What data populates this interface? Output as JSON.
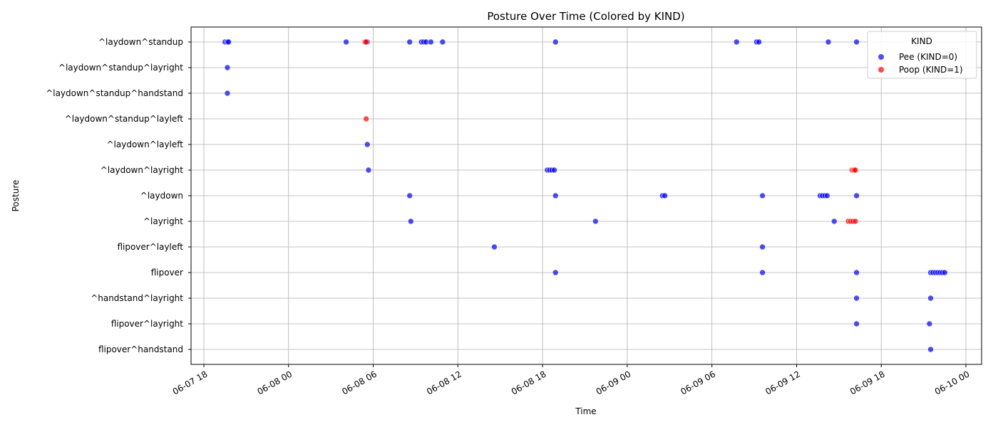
{
  "chart_data": {
    "type": "scatter",
    "title": "Posture Over Time (Colored by KIND)",
    "xlabel": "Time",
    "ylabel": "Posture",
    "grid": true,
    "x_tick_labels": [
      "06-07 18",
      "06-08 00",
      "06-08 06",
      "06-08 12",
      "06-08 18",
      "06-09 00",
      "06-09 06",
      "06-09 12",
      "06-09 18",
      "06-10 00"
    ],
    "xlim": [
      "2024-06-07 18:00",
      "2024-06-10 00:00"
    ],
    "categories": [
      "^laydown^standup",
      "^laydown^standup^layright",
      "^laydown^standup^handstand",
      "^laydown^standup^layleft",
      "^laydown^layleft",
      "^laydown^layright",
      "^laydown",
      "^layright",
      "flipover^layleft",
      "flipover",
      "^handstand^layright",
      "flipover^layright",
      "flipover^handstand"
    ],
    "legend": {
      "title": "KIND",
      "placement": "top-right",
      "entries": [
        {
          "label": "Pee (KIND=0)",
          "color": "#4c4cff"
        },
        {
          "label": "Poop (KIND=1)",
          "color": "#ff4c4c"
        }
      ]
    },
    "series": [
      {
        "name": "Pee (KIND=0)",
        "color": "#0000ff",
        "points": [
          {
            "x": "2024-06-07 19:30",
            "y": "^laydown^standup"
          },
          {
            "x": "2024-06-07 19:40",
            "y": "^laydown^standup"
          },
          {
            "x": "2024-06-07 19:45",
            "y": "^laydown^standup"
          },
          {
            "x": "2024-06-08 04:05",
            "y": "^laydown^standup"
          },
          {
            "x": "2024-06-08 05:35",
            "y": "^laydown^standup"
          },
          {
            "x": "2024-06-08 08:35",
            "y": "^laydown^standup"
          },
          {
            "x": "2024-06-08 09:25",
            "y": "^laydown^standup"
          },
          {
            "x": "2024-06-08 09:35",
            "y": "^laydown^standup"
          },
          {
            "x": "2024-06-08 09:45",
            "y": "^laydown^standup"
          },
          {
            "x": "2024-06-08 10:05",
            "y": "^laydown^standup"
          },
          {
            "x": "2024-06-08 10:55",
            "y": "^laydown^standup"
          },
          {
            "x": "2024-06-08 18:55",
            "y": "^laydown^standup"
          },
          {
            "x": "2024-06-09 07:45",
            "y": "^laydown^standup"
          },
          {
            "x": "2024-06-09 09:10",
            "y": "^laydown^standup"
          },
          {
            "x": "2024-06-09 09:20",
            "y": "^laydown^standup"
          },
          {
            "x": "2024-06-09 14:15",
            "y": "^laydown^standup"
          },
          {
            "x": "2024-06-09 16:15",
            "y": "^laydown^standup"
          },
          {
            "x": "2024-06-07 19:40",
            "y": "^laydown^standup^layright"
          },
          {
            "x": "2024-06-07 19:40",
            "y": "^laydown^standup^handstand"
          },
          {
            "x": "2024-06-08 05:35",
            "y": "^laydown^layleft"
          },
          {
            "x": "2024-06-08 05:40",
            "y": "^laydown^layright"
          },
          {
            "x": "2024-06-08 18:20",
            "y": "^laydown^layright"
          },
          {
            "x": "2024-06-08 18:30",
            "y": "^laydown^layright"
          },
          {
            "x": "2024-06-08 18:40",
            "y": "^laydown^layright"
          },
          {
            "x": "2024-06-08 18:50",
            "y": "^laydown^layright"
          },
          {
            "x": "2024-06-08 08:35",
            "y": "^laydown"
          },
          {
            "x": "2024-06-08 18:55",
            "y": "^laydown"
          },
          {
            "x": "2024-06-09 02:30",
            "y": "^laydown"
          },
          {
            "x": "2024-06-09 02:40",
            "y": "^laydown"
          },
          {
            "x": "2024-06-09 09:35",
            "y": "^laydown"
          },
          {
            "x": "2024-06-09 13:40",
            "y": "^laydown"
          },
          {
            "x": "2024-06-09 13:50",
            "y": "^laydown"
          },
          {
            "x": "2024-06-09 14:00",
            "y": "^laydown"
          },
          {
            "x": "2024-06-09 14:10",
            "y": "^laydown"
          },
          {
            "x": "2024-06-09 16:15",
            "y": "^laydown"
          },
          {
            "x": "2024-06-08 08:40",
            "y": "^layright"
          },
          {
            "x": "2024-06-08 21:45",
            "y": "^layright"
          },
          {
            "x": "2024-06-09 14:40",
            "y": "^layright"
          },
          {
            "x": "2024-06-08 14:35",
            "y": "flipover^layleft"
          },
          {
            "x": "2024-06-09 09:35",
            "y": "flipover^layleft"
          },
          {
            "x": "2024-06-08 18:55",
            "y": "flipover"
          },
          {
            "x": "2024-06-09 09:35",
            "y": "flipover"
          },
          {
            "x": "2024-06-09 16:15",
            "y": "flipover"
          },
          {
            "x": "2024-06-09 21:30",
            "y": "flipover"
          },
          {
            "x": "2024-06-09 21:40",
            "y": "flipover"
          },
          {
            "x": "2024-06-09 21:50",
            "y": "flipover"
          },
          {
            "x": "2024-06-09 22:00",
            "y": "flipover"
          },
          {
            "x": "2024-06-09 22:10",
            "y": "flipover"
          },
          {
            "x": "2024-06-09 22:20",
            "y": "flipover"
          },
          {
            "x": "2024-06-09 22:30",
            "y": "flipover"
          },
          {
            "x": "2024-06-09 16:15",
            "y": "^handstand^layright"
          },
          {
            "x": "2024-06-09 21:30",
            "y": "^handstand^layright"
          },
          {
            "x": "2024-06-09 16:15",
            "y": "flipover^layright"
          },
          {
            "x": "2024-06-09 21:25",
            "y": "flipover^layright"
          },
          {
            "x": "2024-06-09 21:30",
            "y": "flipover^handstand"
          }
        ]
      },
      {
        "name": "Poop (KIND=1)",
        "color": "#ff0000",
        "points": [
          {
            "x": "2024-06-08 05:25",
            "y": "^laydown^standup"
          },
          {
            "x": "2024-06-08 05:30",
            "y": "^laydown^standup"
          },
          {
            "x": "2024-06-08 05:30",
            "y": "^laydown^standup^layleft"
          },
          {
            "x": "2024-06-09 15:55",
            "y": "^laydown^layright"
          },
          {
            "x": "2024-06-09 16:00",
            "y": "^laydown^layright"
          },
          {
            "x": "2024-06-09 16:05",
            "y": "^laydown^layright"
          },
          {
            "x": "2024-06-09 16:10",
            "y": "^laydown^layright"
          },
          {
            "x": "2024-06-09 15:40",
            "y": "^layright"
          },
          {
            "x": "2024-06-09 15:50",
            "y": "^layright"
          },
          {
            "x": "2024-06-09 16:00",
            "y": "^layright"
          },
          {
            "x": "2024-06-09 16:10",
            "y": "^layright"
          }
        ]
      }
    ]
  }
}
